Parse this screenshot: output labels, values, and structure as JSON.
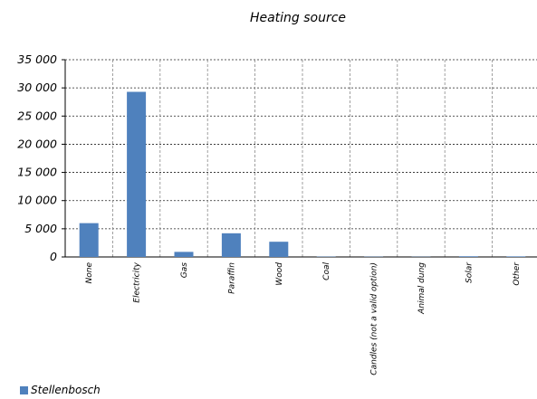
{
  "chart_data": {
    "type": "bar",
    "title": "Heating source",
    "categories": [
      "None",
      "Electricity",
      "Gas",
      "Paraffin",
      "Wood",
      "Coal",
      "Candles (not a valid option)",
      "Animal dung",
      "Solar",
      "Other"
    ],
    "series": [
      {
        "name": "Stellenbosch",
        "values": [
          6000,
          29300,
          900,
          4200,
          2700,
          60,
          50,
          40,
          120,
          100
        ],
        "color": "#4f81bd"
      }
    ],
    "yticks": [
      "0",
      "5 000",
      "10 000",
      "15 000",
      "20 000",
      "25 000",
      "30 000",
      "35 000"
    ],
    "ylim": [
      0,
      35000
    ],
    "grid": true,
    "legend_position": "bottom-left"
  }
}
